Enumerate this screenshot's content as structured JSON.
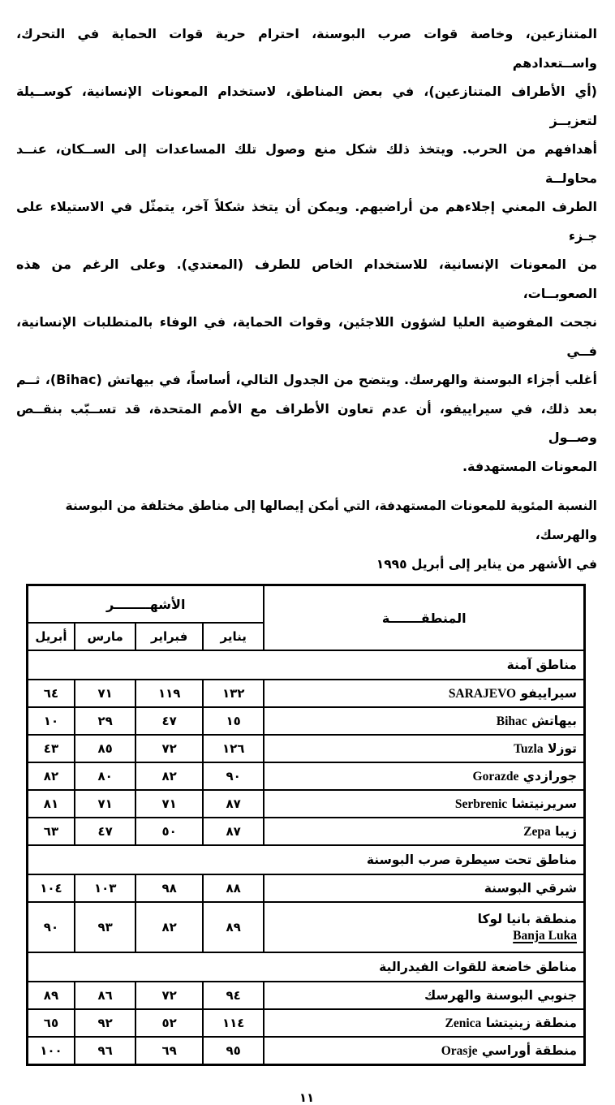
{
  "doc": {
    "paragraph_lines": [
      "المتنازعين، وخاصة قوات صرب البوسنة، احترام حرية قوات الحماية في التحرك، واســتعدادهم",
      "(أي الأطراف المتنازعين)، في بعض المناطق، لاستخدام المعونات الإنسانية، كوســيلة لتعزيــز",
      "أهدافهم من الحرب. ويتخذ ذلك شكل منع وصول تلك المساعدات إلى الســكان، عنــد محاولــة",
      "الطرف المعني إجلاءهم من أراضيهم. ويمكن أن يتخذ شكلاً آخر، يتمثّل في الاستيلاء على جـزء",
      "من المعونات الإنسانية، للاستخدام الخاص للطرف (المعتدي). وعلى الرغم من هذه الصعوبــات،",
      "نجحت المفوضية العليا لشؤون اللاجئين، وقوات الحماية، في الوفاء بالمتطلبات الإنسانية، فــي",
      "أغلب أجزاء البوسنة والهرسك. ويتضح من الجدول التالي، أساساً، في بيهاتش (Bihac)، ثــم",
      "بعد ذلك، في سيراييفو، أن عدم تعاون الأطراف مع الأمم المتحدة، قد تســبّب بنقــص وصــول",
      "المعونات المستهدفة."
    ],
    "caption_lines": [
      "النسبة المئوية للمعونات المستهدفة، التي أمكن إيصالها إلى مناطق مختلفة من البوسنة والهرسك،",
      "في الأشهر من يناير إلى أبريل ١٩٩٥"
    ],
    "page_number": "١١"
  },
  "table": {
    "header": {
      "region": "المنطقـــــــة",
      "months_group": "الأشهــــــــر",
      "months": [
        "يناير",
        "فبراير",
        "مارس",
        "أبريل"
      ]
    },
    "sections": [
      {
        "title": "مناطق آمنة",
        "rows": [
          {
            "ar": "سيراييفو",
            "en": "SARAJEVO",
            "values": [
              "١٣٢",
              "١١٩",
              "٧١",
              "٦٤"
            ]
          },
          {
            "ar": "بيهاتش",
            "en": "Bihac",
            "values": [
              "١٥",
              "٤٧",
              "٢٩",
              "١٠"
            ]
          },
          {
            "ar": "توزلا",
            "en": "Tuzla",
            "values": [
              "١٢٦",
              "٧٢",
              "٨٥",
              "٤٣"
            ]
          },
          {
            "ar": "جورازدي",
            "en": "Gorazde",
            "values": [
              "٩٠",
              "٨٢",
              "٨٠",
              "٨٢"
            ]
          },
          {
            "ar": "سريرنيتشا",
            "en": "Serbrenic",
            "values": [
              "٨٧",
              "٧١",
              "٧١",
              "٨١"
            ]
          },
          {
            "ar": "زيبا",
            "en": "Zepa",
            "values": [
              "٨٧",
              "٥٠",
              "٤٧",
              "٦٣"
            ]
          }
        ]
      },
      {
        "title": "مناطق تحت سيطرة صرب البوسنة",
        "rows": [
          {
            "ar": "شرقي البوسنة",
            "en": "",
            "values": [
              "٨٨",
              "٩٨",
              "١٠٣",
              "١٠٤"
            ]
          },
          {
            "ar": "منطقة بانيا لوكا",
            "en": "Banja Luka",
            "en_block": true,
            "values": [
              "٨٩",
              "٨٢",
              "٩٣",
              "٩٠"
            ]
          }
        ]
      },
      {
        "title": "مناطق خاضعة للقوات الفيدرالية",
        "rows": [
          {
            "ar": "جنوبي البوسنة والهرسك",
            "en": "",
            "values": [
              "٩٤",
              "٧٢",
              "٨٦",
              "٨٩"
            ]
          },
          {
            "ar": "منطقة زينيتشا",
            "en": "Zenica",
            "values": [
              "١١٤",
              "٥٢",
              "٩٢",
              "٦٥"
            ]
          },
          {
            "ar": "منطقة أوراسي",
            "en": "Orasje",
            "values": [
              "٩٥",
              "٦٩",
              "٩٦",
              "١٠٠"
            ]
          }
        ]
      }
    ]
  }
}
